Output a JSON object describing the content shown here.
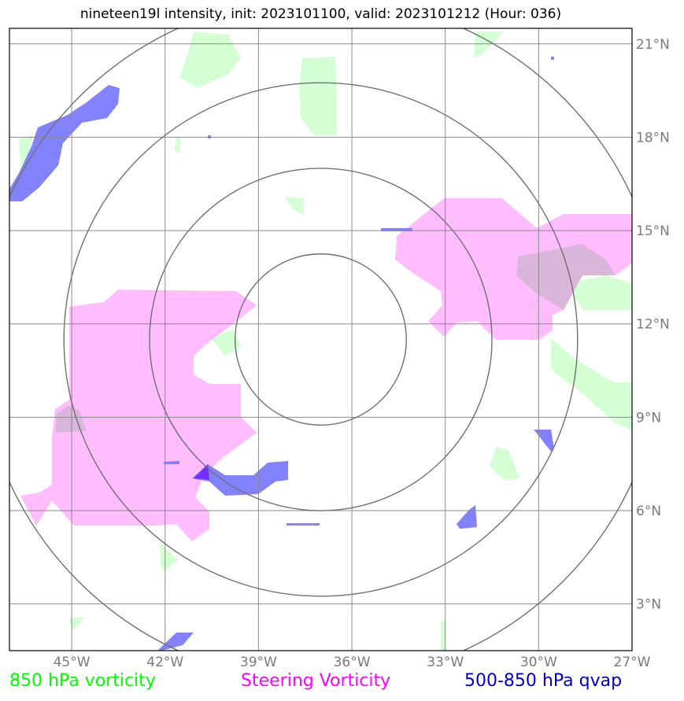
{
  "title": "nineteen19l intensity, init: 2023101100, valid: 2023101212 (Hour: 036)",
  "map": {
    "lon_range": [
      -47,
      -27
    ],
    "lat_range": [
      1.5,
      21.5
    ],
    "lon_ticks": [
      {
        "value": -45,
        "label": "45°W"
      },
      {
        "value": -42,
        "label": "42°W"
      },
      {
        "value": -39,
        "label": "39°W"
      },
      {
        "value": -36,
        "label": "36°W"
      },
      {
        "value": -33,
        "label": "33°W"
      },
      {
        "value": -30,
        "label": "30°W"
      },
      {
        "value": -27,
        "label": "27°W"
      }
    ],
    "lat_ticks": [
      {
        "value": 3,
        "label": "3°N"
      },
      {
        "value": 6,
        "label": "6°N"
      },
      {
        "value": 9,
        "label": "9°N"
      },
      {
        "value": 12,
        "label": "12°N"
      },
      {
        "value": 15,
        "label": "15°N"
      },
      {
        "value": 18,
        "label": "18°N"
      },
      {
        "value": 21,
        "label": "21°N"
      }
    ],
    "storm_center": {
      "lon": -37.0,
      "lat": 11.5
    },
    "range_rings_deg": [
      2.75,
      5.5,
      8.25,
      11.0
    ],
    "layer_colors": {
      "vorticity_850": "#ccffcc",
      "steering_vorticity": "#ffb0ff",
      "qvap": "#7b7bff",
      "overlap": "#d3b6d3"
    }
  },
  "legend": {
    "vort850": {
      "label": "850 hPa vorticity",
      "color": "#00ff00"
    },
    "steering": {
      "label": "Steering Vorticity",
      "color": "#ff00ff"
    },
    "qvap": {
      "label": "500-850 hPa qvap",
      "color": "#0000cc"
    }
  }
}
